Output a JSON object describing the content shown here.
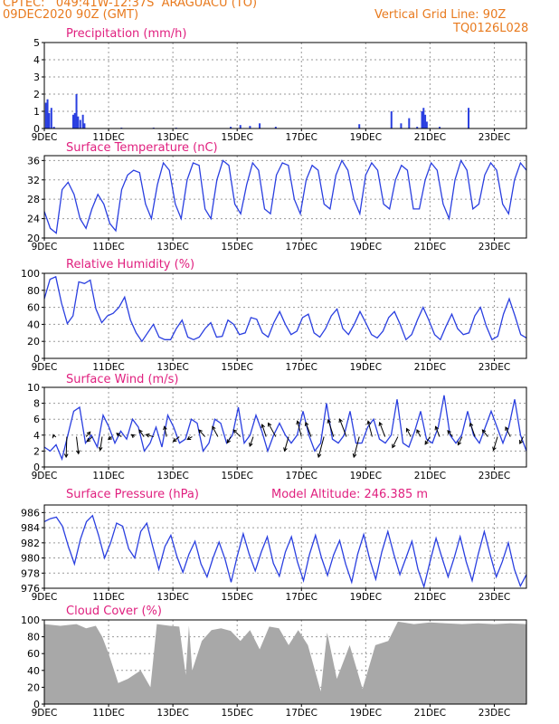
{
  "header": {
    "line1": "CPTEC:   049:41W-12:37S  ARAGUACU (TO)",
    "line2": "09DEC2020 90Z (GMT)",
    "grid_note": "Vertical Grid Line: 90Z",
    "code": "TQ0126L028",
    "color": "#e87a1e"
  },
  "colors": {
    "title": "#e0207f",
    "line": "#2a3fe0",
    "bar": "#2a3fe0",
    "cloud": "#a8a8a8",
    "arrow": "#000000",
    "grid": "#9a9a9a"
  },
  "x_tick_labels": [
    "9DEC",
    "11DEC",
    "13DEC",
    "15DEC",
    "17DEC",
    "19DEC",
    "21DEC",
    "23DEC"
  ],
  "x_tick_days": [
    9,
    11,
    13,
    15,
    17,
    19,
    21,
    23
  ],
  "x_range_days": [
    9,
    24
  ],
  "panels": [
    {
      "id": "precipitation",
      "title": "Precipitation (mm/h)",
      "type": "bar",
      "ylim": [
        0,
        5
      ],
      "yticks": [
        0,
        1,
        2,
        3,
        4,
        5
      ],
      "points": [
        [
          9.05,
          1.5
        ],
        [
          9.1,
          1.7
        ],
        [
          9.15,
          0.9
        ],
        [
          9.22,
          1.2
        ],
        [
          9.3,
          0.1
        ],
        [
          9.9,
          0.8
        ],
        [
          9.95,
          0.9
        ],
        [
          10.0,
          2.0
        ],
        [
          10.05,
          0.7
        ],
        [
          10.12,
          0.5
        ],
        [
          10.2,
          0.8
        ],
        [
          10.25,
          0.3
        ],
        [
          11.4,
          0.05
        ],
        [
          12.4,
          0.05
        ],
        [
          13.1,
          0.05
        ],
        [
          14.8,
          0.1
        ],
        [
          15.1,
          0.2
        ],
        [
          15.4,
          0.15
        ],
        [
          15.7,
          0.3
        ],
        [
          16.2,
          0.1
        ],
        [
          18.8,
          0.25
        ],
        [
          19.8,
          1.0
        ],
        [
          20.1,
          0.3
        ],
        [
          20.35,
          0.6
        ],
        [
          20.6,
          0.1
        ],
        [
          20.75,
          1.0
        ],
        [
          20.8,
          1.2
        ],
        [
          20.85,
          0.8
        ],
        [
          20.9,
          0.4
        ],
        [
          21.3,
          0.1
        ],
        [
          22.2,
          1.2
        ]
      ]
    },
    {
      "id": "temperature",
      "title": "Surface Temperature (nC)",
      "type": "line",
      "ylim": [
        20,
        37
      ],
      "yticks": [
        20,
        24,
        28,
        32,
        36
      ],
      "values": [
        25.5,
        22,
        21,
        30,
        31.5,
        29,
        24,
        22,
        26,
        29,
        27,
        23,
        21.5,
        30,
        33,
        34,
        33.5,
        27,
        24,
        31,
        35.5,
        34,
        27,
        24,
        32,
        35.5,
        35,
        26,
        24,
        32,
        36,
        35,
        27,
        25,
        31,
        35.5,
        34,
        26,
        25,
        33,
        35.5,
        35,
        28,
        25,
        32,
        35,
        34,
        27,
        26,
        33,
        36,
        34,
        28,
        25,
        33,
        35.5,
        34,
        27,
        26,
        32,
        35,
        34,
        26,
        26,
        32,
        35.5,
        34,
        27,
        24,
        32,
        36,
        34,
        26,
        27,
        33,
        35.5,
        34,
        27,
        25,
        32,
        35.5,
        34
      ]
    },
    {
      "id": "humidity",
      "title": "Relative Humidity (%)",
      "type": "line",
      "ylim": [
        0,
        100
      ],
      "yticks": [
        0,
        20,
        40,
        60,
        80,
        100
      ],
      "values": [
        70,
        93,
        96,
        65,
        41,
        50,
        90,
        88,
        92,
        58,
        42,
        50,
        53,
        60,
        72,
        45,
        30,
        20,
        30,
        40,
        25,
        22,
        22,
        35,
        45,
        25,
        22,
        25,
        35,
        42,
        25,
        26,
        45,
        40,
        28,
        30,
        48,
        46,
        30,
        25,
        42,
        55,
        40,
        28,
        32,
        48,
        52,
        30,
        25,
        35,
        50,
        58,
        35,
        28,
        40,
        55,
        42,
        28,
        24,
        32,
        48,
        55,
        40,
        22,
        28,
        45,
        60,
        45,
        28,
        22,
        38,
        52,
        35,
        28,
        30,
        50,
        60,
        38,
        22,
        26,
        52,
        70,
        50,
        28,
        24
      ]
    },
    {
      "id": "wind",
      "title": "Surface Wind (m/s)",
      "type": "line",
      "ylim": [
        0,
        10
      ],
      "yticks": [
        0,
        2,
        4,
        6,
        8,
        10
      ],
      "values": [
        2.5,
        2,
        2.8,
        1,
        4,
        7,
        7.5,
        3,
        4,
        2.5,
        6.5,
        5,
        3,
        4.5,
        3.5,
        6,
        5,
        2,
        3,
        5,
        2.5,
        6.5,
        5,
        3,
        3.5,
        6,
        5.5,
        2,
        3,
        6,
        5.5,
        3,
        4,
        7.5,
        3,
        4,
        6.5,
        4.5,
        2,
        4,
        5.5,
        4,
        3,
        4,
        7,
        4,
        2,
        3,
        8,
        3.5,
        3,
        4,
        7,
        3,
        3,
        5,
        6,
        3.5,
        3,
        4,
        8.5,
        3,
        2.5,
        4.5,
        7,
        3.5,
        3,
        5,
        9,
        4,
        3,
        4,
        7,
        4,
        3,
        5,
        7,
        5,
        3,
        5,
        8.5,
        4,
        2
      ],
      "arrows": [
        [
          9.3,
          -0.1,
          0.3
        ],
        [
          9.7,
          -0.1,
          -3.0
        ],
        [
          10.0,
          0.3,
          -2.5
        ],
        [
          10.3,
          0.6,
          0.7
        ],
        [
          10.5,
          -0.8,
          -0.7
        ],
        [
          10.8,
          -0.3,
          -2.0
        ],
        [
          11.1,
          -0.5,
          -0.4
        ],
        [
          11.4,
          -0.7,
          0.5
        ],
        [
          11.8,
          -0.4,
          0.3
        ],
        [
          12.1,
          -0.7,
          1.0
        ],
        [
          12.4,
          -1.1,
          0.3
        ],
        [
          12.8,
          -0.3,
          1.5
        ],
        [
          13.2,
          -0.9,
          -0.7
        ],
        [
          13.6,
          -0.7,
          -0.4
        ],
        [
          14.0,
          -0.9,
          1.0
        ],
        [
          14.4,
          -0.8,
          1.5
        ],
        [
          14.8,
          -0.5,
          -0.9
        ],
        [
          15.1,
          -1.0,
          1.0
        ],
        [
          15.5,
          -0.5,
          -1.4
        ],
        [
          15.9,
          -0.6,
          1.8
        ],
        [
          16.2,
          -1.1,
          2.0
        ],
        [
          16.6,
          -0.6,
          -2.1
        ],
        [
          17.0,
          -0.6,
          2.3
        ],
        [
          17.3,
          -0.8,
          2.1
        ],
        [
          17.7,
          -0.8,
          -3.0
        ],
        [
          18.0,
          -0.8,
          2.5
        ],
        [
          18.4,
          -1.0,
          2.6
        ],
        [
          18.8,
          -0.8,
          -3.0
        ],
        [
          19.2,
          -0.6,
          2.3
        ],
        [
          19.6,
          -0.8,
          2.1
        ],
        [
          20.0,
          -0.8,
          -1.6
        ],
        [
          20.4,
          -0.6,
          1.2
        ],
        [
          20.7,
          -0.5,
          1.0
        ],
        [
          21.0,
          -0.7,
          -1.1
        ],
        [
          21.3,
          -0.6,
          1.5
        ],
        [
          21.7,
          -0.7,
          0.9
        ],
        [
          22.0,
          -0.6,
          -1.2
        ],
        [
          22.4,
          -0.7,
          2.0
        ],
        [
          22.8,
          -0.8,
          1.0
        ],
        [
          23.1,
          -0.6,
          -2.0
        ],
        [
          23.5,
          -0.7,
          1.4
        ],
        [
          23.9,
          -0.5,
          -1.0
        ]
      ]
    },
    {
      "id": "pressure",
      "title": "Surface Pressure (hPa)",
      "subtitle": "Model Altitude: 246.385 m",
      "type": "line",
      "ylim": [
        976,
        987
      ],
      "yticks": [
        976,
        978,
        980,
        982,
        984,
        986
      ],
      "values": [
        984.8,
        985.2,
        985.4,
        984.2,
        981.5,
        979.2,
        982.5,
        984.8,
        985.6,
        983,
        980,
        982,
        984.6,
        984.2,
        981.2,
        980,
        983.5,
        984.6,
        981.5,
        978.5,
        981.5,
        983,
        980.2,
        978.1,
        980.5,
        982.2,
        979.2,
        977.5,
        980,
        982.1,
        979.8,
        976.8,
        980.2,
        983.2,
        980.5,
        978.3,
        980.8,
        982.8,
        979.3,
        977.6,
        980.8,
        982.8,
        979.5,
        977,
        980.5,
        983,
        980,
        977.7,
        980.4,
        982.3,
        979.2,
        976.8,
        980.5,
        983.1,
        979.8,
        977.2,
        980.8,
        983.5,
        980.5,
        977.8,
        980,
        982.2,
        978.5,
        976.2,
        979.5,
        982.6,
        980,
        977.5,
        980,
        982.8,
        979.5,
        977,
        980.5,
        983.5,
        980.4,
        977.5,
        979.5,
        982,
        978.5,
        976.3,
        977.8
      ]
    },
    {
      "id": "cloud",
      "title": "Cloud Cover (%)",
      "type": "area",
      "ylim": [
        0,
        100
      ],
      "yticks": [
        0,
        20,
        40,
        60,
        80,
        100
      ],
      "points": [
        [
          9,
          95
        ],
        [
          9.5,
          93
        ],
        [
          10,
          95
        ],
        [
          10.3,
          90
        ],
        [
          10.6,
          93
        ],
        [
          10.8,
          80
        ],
        [
          11,
          60
        ],
        [
          11.3,
          25
        ],
        [
          11.6,
          30
        ],
        [
          12,
          40
        ],
        [
          12.3,
          20
        ],
        [
          12.5,
          95
        ],
        [
          12.9,
          93
        ],
        [
          13.2,
          92
        ],
        [
          13.4,
          35
        ],
        [
          13.5,
          93
        ],
        [
          13.6,
          40
        ],
        [
          13.9,
          75
        ],
        [
          14.2,
          88
        ],
        [
          14.5,
          90
        ],
        [
          14.8,
          87
        ],
        [
          15.1,
          75
        ],
        [
          15.4,
          88
        ],
        [
          15.7,
          65
        ],
        [
          16.0,
          92
        ],
        [
          16.3,
          90
        ],
        [
          16.6,
          70
        ],
        [
          16.9,
          88
        ],
        [
          17.2,
          70
        ],
        [
          17.6,
          15
        ],
        [
          17.8,
          85
        ],
        [
          18.1,
          30
        ],
        [
          18.5,
          70
        ],
        [
          18.9,
          18
        ],
        [
          19.3,
          70
        ],
        [
          19.7,
          75
        ],
        [
          20.0,
          98
        ],
        [
          20.5,
          95
        ],
        [
          21.0,
          97
        ],
        [
          21.5,
          96
        ],
        [
          22.0,
          95
        ],
        [
          22.5,
          96
        ],
        [
          23.0,
          95
        ],
        [
          23.5,
          96
        ],
        [
          24,
          95
        ]
      ]
    }
  ]
}
